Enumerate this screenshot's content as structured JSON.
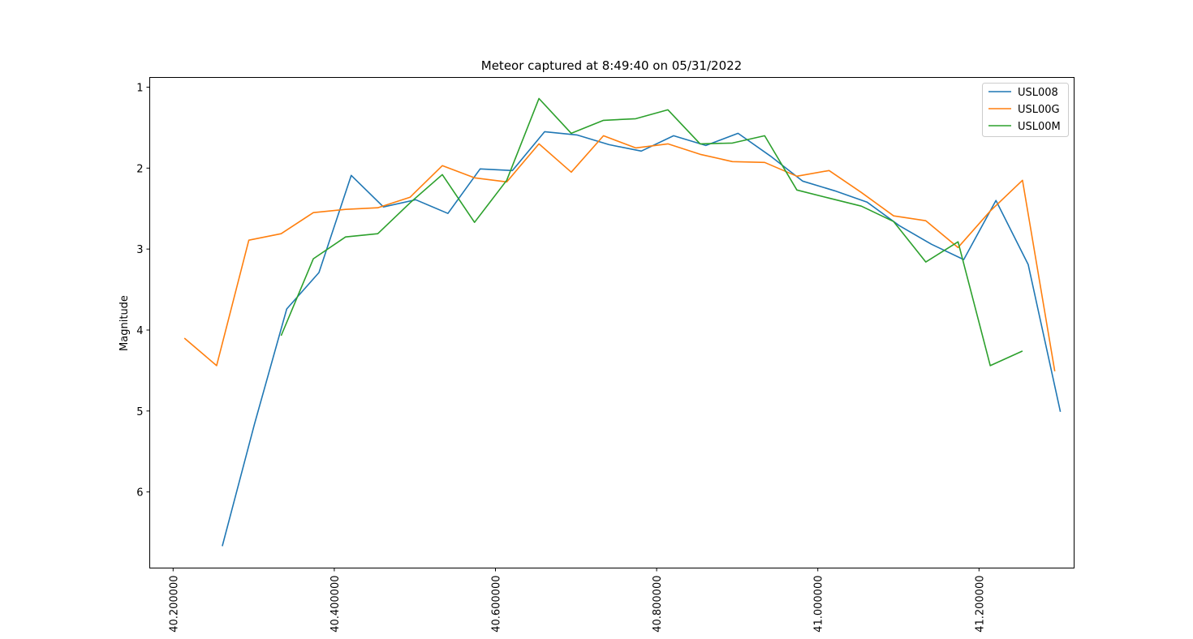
{
  "chart_data": {
    "type": "line",
    "title": "Meteor captured at 8:49:40 on 05/31/2022",
    "xlabel": "",
    "ylabel": "Magnitude",
    "xlim": [
      40.171,
      41.318
    ],
    "ylim": [
      6.94,
      0.88
    ],
    "y_inverted": true,
    "x_ticks": [
      40.2,
      40.4,
      40.6,
      40.8,
      41.0,
      41.2
    ],
    "x_tick_labels": [
      "40.200000",
      "40.400000",
      "40.600000",
      "40.800000",
      "41.000000",
      "41.200000"
    ],
    "y_ticks": [
      1,
      2,
      3,
      4,
      5,
      6
    ],
    "y_tick_labels": [
      "1",
      "2",
      "3",
      "4",
      "5",
      "6"
    ],
    "grid": false,
    "legend_position": "top-right",
    "series": [
      {
        "name": "USL008",
        "color": "#1f77b4",
        "x": [
          40.261,
          40.301,
          40.341,
          40.381,
          40.421,
          40.461,
          40.501,
          40.541,
          40.581,
          40.621,
          40.661,
          40.701,
          40.741,
          40.781,
          40.821,
          40.861,
          40.901,
          40.941,
          40.981,
          41.021,
          41.061,
          41.101,
          41.141,
          41.181,
          41.221,
          41.261,
          41.301
        ],
        "y": [
          6.67,
          5.16,
          3.74,
          3.29,
          2.09,
          2.48,
          2.39,
          2.56,
          2.01,
          2.03,
          1.55,
          1.59,
          1.71,
          1.79,
          1.6,
          1.72,
          1.57,
          1.85,
          2.16,
          2.28,
          2.42,
          2.71,
          2.94,
          3.13,
          2.4,
          3.19,
          5.01
        ]
      },
      {
        "name": "USL00G",
        "color": "#ff7f0e",
        "x": [
          40.214,
          40.254,
          40.294,
          40.334,
          40.374,
          40.414,
          40.454,
          40.494,
          40.534,
          40.574,
          40.614,
          40.654,
          40.694,
          40.734,
          40.774,
          40.814,
          40.854,
          40.894,
          40.934,
          40.974,
          41.014,
          41.054,
          41.094,
          41.134,
          41.174,
          41.214,
          41.254,
          41.294
        ],
        "y": [
          4.1,
          4.44,
          2.89,
          2.81,
          2.55,
          2.51,
          2.49,
          2.36,
          1.97,
          2.12,
          2.17,
          1.7,
          2.05,
          1.6,
          1.75,
          1.7,
          1.83,
          1.92,
          1.93,
          2.1,
          2.03,
          2.3,
          2.59,
          2.65,
          2.98,
          2.53,
          2.15,
          4.51
        ]
      },
      {
        "name": "USL00M",
        "color": "#2ca02c",
        "x": [
          40.334,
          40.374,
          40.414,
          40.454,
          40.494,
          40.534,
          40.574,
          40.614,
          40.654,
          40.694,
          40.734,
          40.774,
          40.814,
          40.854,
          40.894,
          40.934,
          40.974,
          41.014,
          41.054,
          41.094,
          41.134,
          41.174,
          41.214,
          41.254
        ],
        "y": [
          4.07,
          3.12,
          2.85,
          2.81,
          2.43,
          2.08,
          2.67,
          2.15,
          1.14,
          1.57,
          1.41,
          1.39,
          1.28,
          1.7,
          1.69,
          1.6,
          2.27,
          2.37,
          2.47,
          2.66,
          3.16,
          2.91,
          4.44,
          4.26
        ]
      }
    ]
  }
}
